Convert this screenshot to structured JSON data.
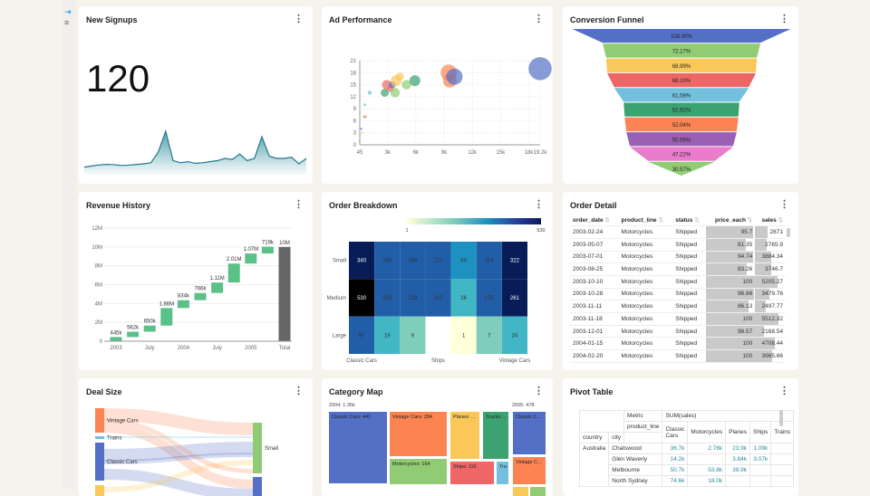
{
  "sidebar": {
    "expand_icon": "expand-icon",
    "filter_icon": "filter-icon"
  },
  "cards": {
    "new_signups": {
      "title": "New Signups",
      "value": "120",
      "sparkline": [
        2,
        3,
        4,
        4.5,
        4.2,
        3.5,
        3.8,
        4.4,
        5,
        6,
        16,
        35,
        8,
        6,
        7,
        5.5,
        6,
        7,
        8,
        10,
        9,
        14,
        8,
        10,
        30,
        12,
        10,
        10,
        11,
        5,
        10
      ]
    },
    "ad_performance": {
      "title": "Ad Performance"
    },
    "conversion_funnel": {
      "title": "Conversion Funnel"
    },
    "revenue_history": {
      "title": "Revenue History"
    },
    "order_breakdown": {
      "title": "Order Breakdown"
    },
    "order_detail": {
      "title": "Order Detail"
    },
    "deal_size": {
      "title": "Deal Size"
    },
    "category_map": {
      "title": "Category Map"
    },
    "pivot_table": {
      "title": "Pivot Table"
    }
  },
  "chart_data": [
    {
      "type": "scatter",
      "chart": "ad_performance",
      "xlim": [
        45,
        19200
      ],
      "ylim": [
        0,
        21
      ],
      "x_ticks": [
        "45",
        "3k",
        "6k",
        "9k",
        "12k",
        "15k",
        "18k",
        "19.2k"
      ],
      "x_tick_values": [
        45,
        3000,
        6000,
        9000,
        12000,
        15000,
        18000,
        19200
      ],
      "y_ticks": [
        "0",
        "3",
        "6",
        "9",
        "12",
        "15",
        "18",
        "21"
      ],
      "points": [
        {
          "x": 45,
          "y": 1,
          "size": 1,
          "color": "#5470c6"
        },
        {
          "x": 200,
          "y": 4,
          "size": 1.5,
          "color": "#5470c6"
        },
        {
          "x": 300,
          "y": 3,
          "size": 1.5,
          "color": "#fac858"
        },
        {
          "x": 500,
          "y": 7,
          "size": 2,
          "color": "#91cc75"
        },
        {
          "x": 650,
          "y": 7,
          "size": 2,
          "color": "#fc8452"
        },
        {
          "x": 600,
          "y": 10,
          "size": 2,
          "color": "#73c0de"
        },
        {
          "x": 1100,
          "y": 13,
          "size": 3,
          "color": "#73c0de"
        },
        {
          "x": 2700,
          "y": 13,
          "size": 6,
          "color": "#3ba272"
        },
        {
          "x": 2900,
          "y": 15,
          "size": 7,
          "color": "#ee6666"
        },
        {
          "x": 3300,
          "y": 14,
          "size": 5,
          "color": "#ee6666"
        },
        {
          "x": 3500,
          "y": 15,
          "size": 5,
          "color": "#5470c6"
        },
        {
          "x": 3800,
          "y": 13,
          "size": 7,
          "color": "#91cc75"
        },
        {
          "x": 3900,
          "y": 16,
          "size": 8,
          "color": "#fac858"
        },
        {
          "x": 4300,
          "y": 17,
          "size": 6,
          "color": "#fac858"
        },
        {
          "x": 5000,
          "y": 15,
          "size": 7,
          "color": "#91cc75"
        },
        {
          "x": 5900,
          "y": 16,
          "size": 8,
          "color": "#3ba272"
        },
        {
          "x": 9500,
          "y": 18,
          "size": 12,
          "color": "#fc8452"
        },
        {
          "x": 9600,
          "y": 16,
          "size": 10,
          "color": "#fc8452"
        },
        {
          "x": 10100,
          "y": 17,
          "size": 12,
          "color": "#5470c6"
        },
        {
          "x": 19200,
          "y": 19,
          "size": 17,
          "color": "#5470c6"
        }
      ]
    },
    {
      "type": "funnel",
      "chart": "conversion_funnel",
      "values": [
        "100.00%",
        "72.17%",
        "68.99%",
        "68.10%",
        "61.58%",
        "52.92%",
        "52.04%",
        "50.56%",
        "47.22%",
        "30.57%"
      ],
      "colors": [
        "#5470c6",
        "#91cc75",
        "#fac858",
        "#ee6666",
        "#73c0de",
        "#3ba272",
        "#fc8452",
        "#9a60b4",
        "#ea7ccc",
        "#91cc75"
      ]
    },
    {
      "type": "bar",
      "subtype": "waterfall",
      "chart": "revenue_history",
      "ylim": [
        0,
        12
      ],
      "y_ticks": [
        "0",
        "2M",
        "4M",
        "6M",
        "8M",
        "10M",
        "12M"
      ],
      "increments": [
        0.445,
        0.562,
        0.65,
        1.86,
        0.834,
        0.766,
        1.11,
        2.01,
        1.07,
        0.719
      ],
      "labels": [
        "445k",
        "562k",
        "650k",
        "1.86M",
        "834k",
        "766k",
        "1.11M",
        "2.01M",
        "1.07M",
        "719k"
      ],
      "total": 10,
      "total_label": "10M",
      "x_labels": [
        {
          "at": 0,
          "text": "2003"
        },
        {
          "at": 2,
          "text": "July"
        },
        {
          "at": 4,
          "text": "2004"
        },
        {
          "at": 6,
          "text": "July"
        },
        {
          "at": 8,
          "text": "2005"
        },
        {
          "at": 10,
          "text": "Total"
        }
      ],
      "colors": {
        "increase": "#5ac189",
        "total": "#666666"
      }
    },
    {
      "type": "heatmap",
      "chart": "order_breakdown",
      "rows": [
        "Small",
        "Medium",
        "Large"
      ],
      "x_labels": [
        {
          "at": 0,
          "text": "Classic Cars"
        },
        {
          "at": 3,
          "text": "Ships"
        },
        {
          "at": 6,
          "text": "Vintage Cars"
        }
      ],
      "values": [
        [
          340,
          156,
          168,
          127,
          50,
          119,
          322
        ],
        [
          530,
          156,
          129,
          107,
          26,
          175,
          261
        ],
        [
          97,
          19,
          9,
          null,
          1,
          7,
          24
        ]
      ],
      "scale_min": "1",
      "scale_max": "530"
    },
    {
      "type": "treemap",
      "chart": "category_map",
      "groups": [
        {
          "label": "2004: 1.35k",
          "nodes": [
            {
              "label": "Classic Cars: 442",
              "color": "#5470c6"
            },
            {
              "label": "Vintage Cars: 284",
              "color": "#fc8452"
            },
            {
              "label": "Motorcycles: 164",
              "color": "#91cc75"
            },
            {
              "label": "Planes: ...",
              "color": "#fac858"
            },
            {
              "label": "Trucks ...",
              "color": "#3ba272"
            },
            {
              "label": "Ships: 115",
              "color": "#ee6666"
            },
            {
              "label": "Tra",
              "color": "#73c0de"
            }
          ]
        },
        {
          "label": "2005: 478",
          "nodes": [
            {
              "label": "Classic C...",
              "color": "#5470c6"
            },
            {
              "label": "Vintage C...",
              "color": "#fc8452"
            }
          ]
        }
      ]
    },
    {
      "type": "sankey",
      "chart": "deal_size",
      "sources": [
        {
          "label": "Vintage Cars",
          "color": "#fc8452"
        },
        {
          "label": "Trains",
          "color": "#73c0de"
        },
        {
          "label": "Classic Cars",
          "color": "#5470c6"
        },
        {
          "label": "",
          "color": "#fac858"
        }
      ],
      "targets": [
        {
          "label": "Small",
          "color": "#91cc75"
        },
        {
          "label": "",
          "color": "#5470c6"
        }
      ]
    }
  ],
  "order_detail": {
    "columns": [
      "order_date",
      "product_line",
      "status",
      "price_each",
      "sales"
    ],
    "rows": [
      [
        "2003-02-24",
        "Motorcycles",
        "Shipped",
        "95.7",
        "2871"
      ],
      [
        "2003-05-07",
        "Motorcycles",
        "Shipped",
        "81.35",
        "2765.9"
      ],
      [
        "2003-07-01",
        "Motorcycles",
        "Shipped",
        "94.74",
        "3884.34"
      ],
      [
        "2003-08-25",
        "Motorcycles",
        "Shipped",
        "83.26",
        "3746.7"
      ],
      [
        "2003-10-10",
        "Motorcycles",
        "Shipped",
        "100",
        "5205.27"
      ],
      [
        "2003-10-28",
        "Motorcycles",
        "Shipped",
        "96.66",
        "3479.76"
      ],
      [
        "2003-11-11",
        "Motorcycles",
        "Shipped",
        "86.13",
        "2497.77"
      ],
      [
        "2003-11-18",
        "Motorcycles",
        "Shipped",
        "100",
        "5512.32"
      ],
      [
        "2003-12-01",
        "Motorcycles",
        "Shipped",
        "98.57",
        "2168.54"
      ],
      [
        "2004-01-15",
        "Motorcycles",
        "Shipped",
        "100",
        "4708.44"
      ],
      [
        "2004-02-20",
        "Motorcycles",
        "Shipped",
        "100",
        "3965.66"
      ]
    ]
  },
  "pivot": {
    "metric_label": "Metric",
    "metric": "SUM(sales)",
    "col_dim": "product_line",
    "columns": [
      "Classic Cars",
      "Motorcycles",
      "Planes",
      "Ships",
      "Trains"
    ],
    "row_dims": [
      "country",
      "city"
    ],
    "rows": [
      [
        "Australia",
        "Chatswood",
        "36.7k",
        "2.78k",
        "23.9k",
        "1.09k",
        ""
      ],
      [
        "",
        "Glen Waverly",
        "14.2k",
        "",
        "3.84k",
        "3.07k",
        ""
      ],
      [
        "",
        "Melbourne",
        "50.7k",
        "53.8k",
        "39.9k",
        "",
        ""
      ],
      [
        "",
        "North Sydney",
        "74.6k",
        "18.0k",
        "",
        "",
        ""
      ]
    ]
  }
}
